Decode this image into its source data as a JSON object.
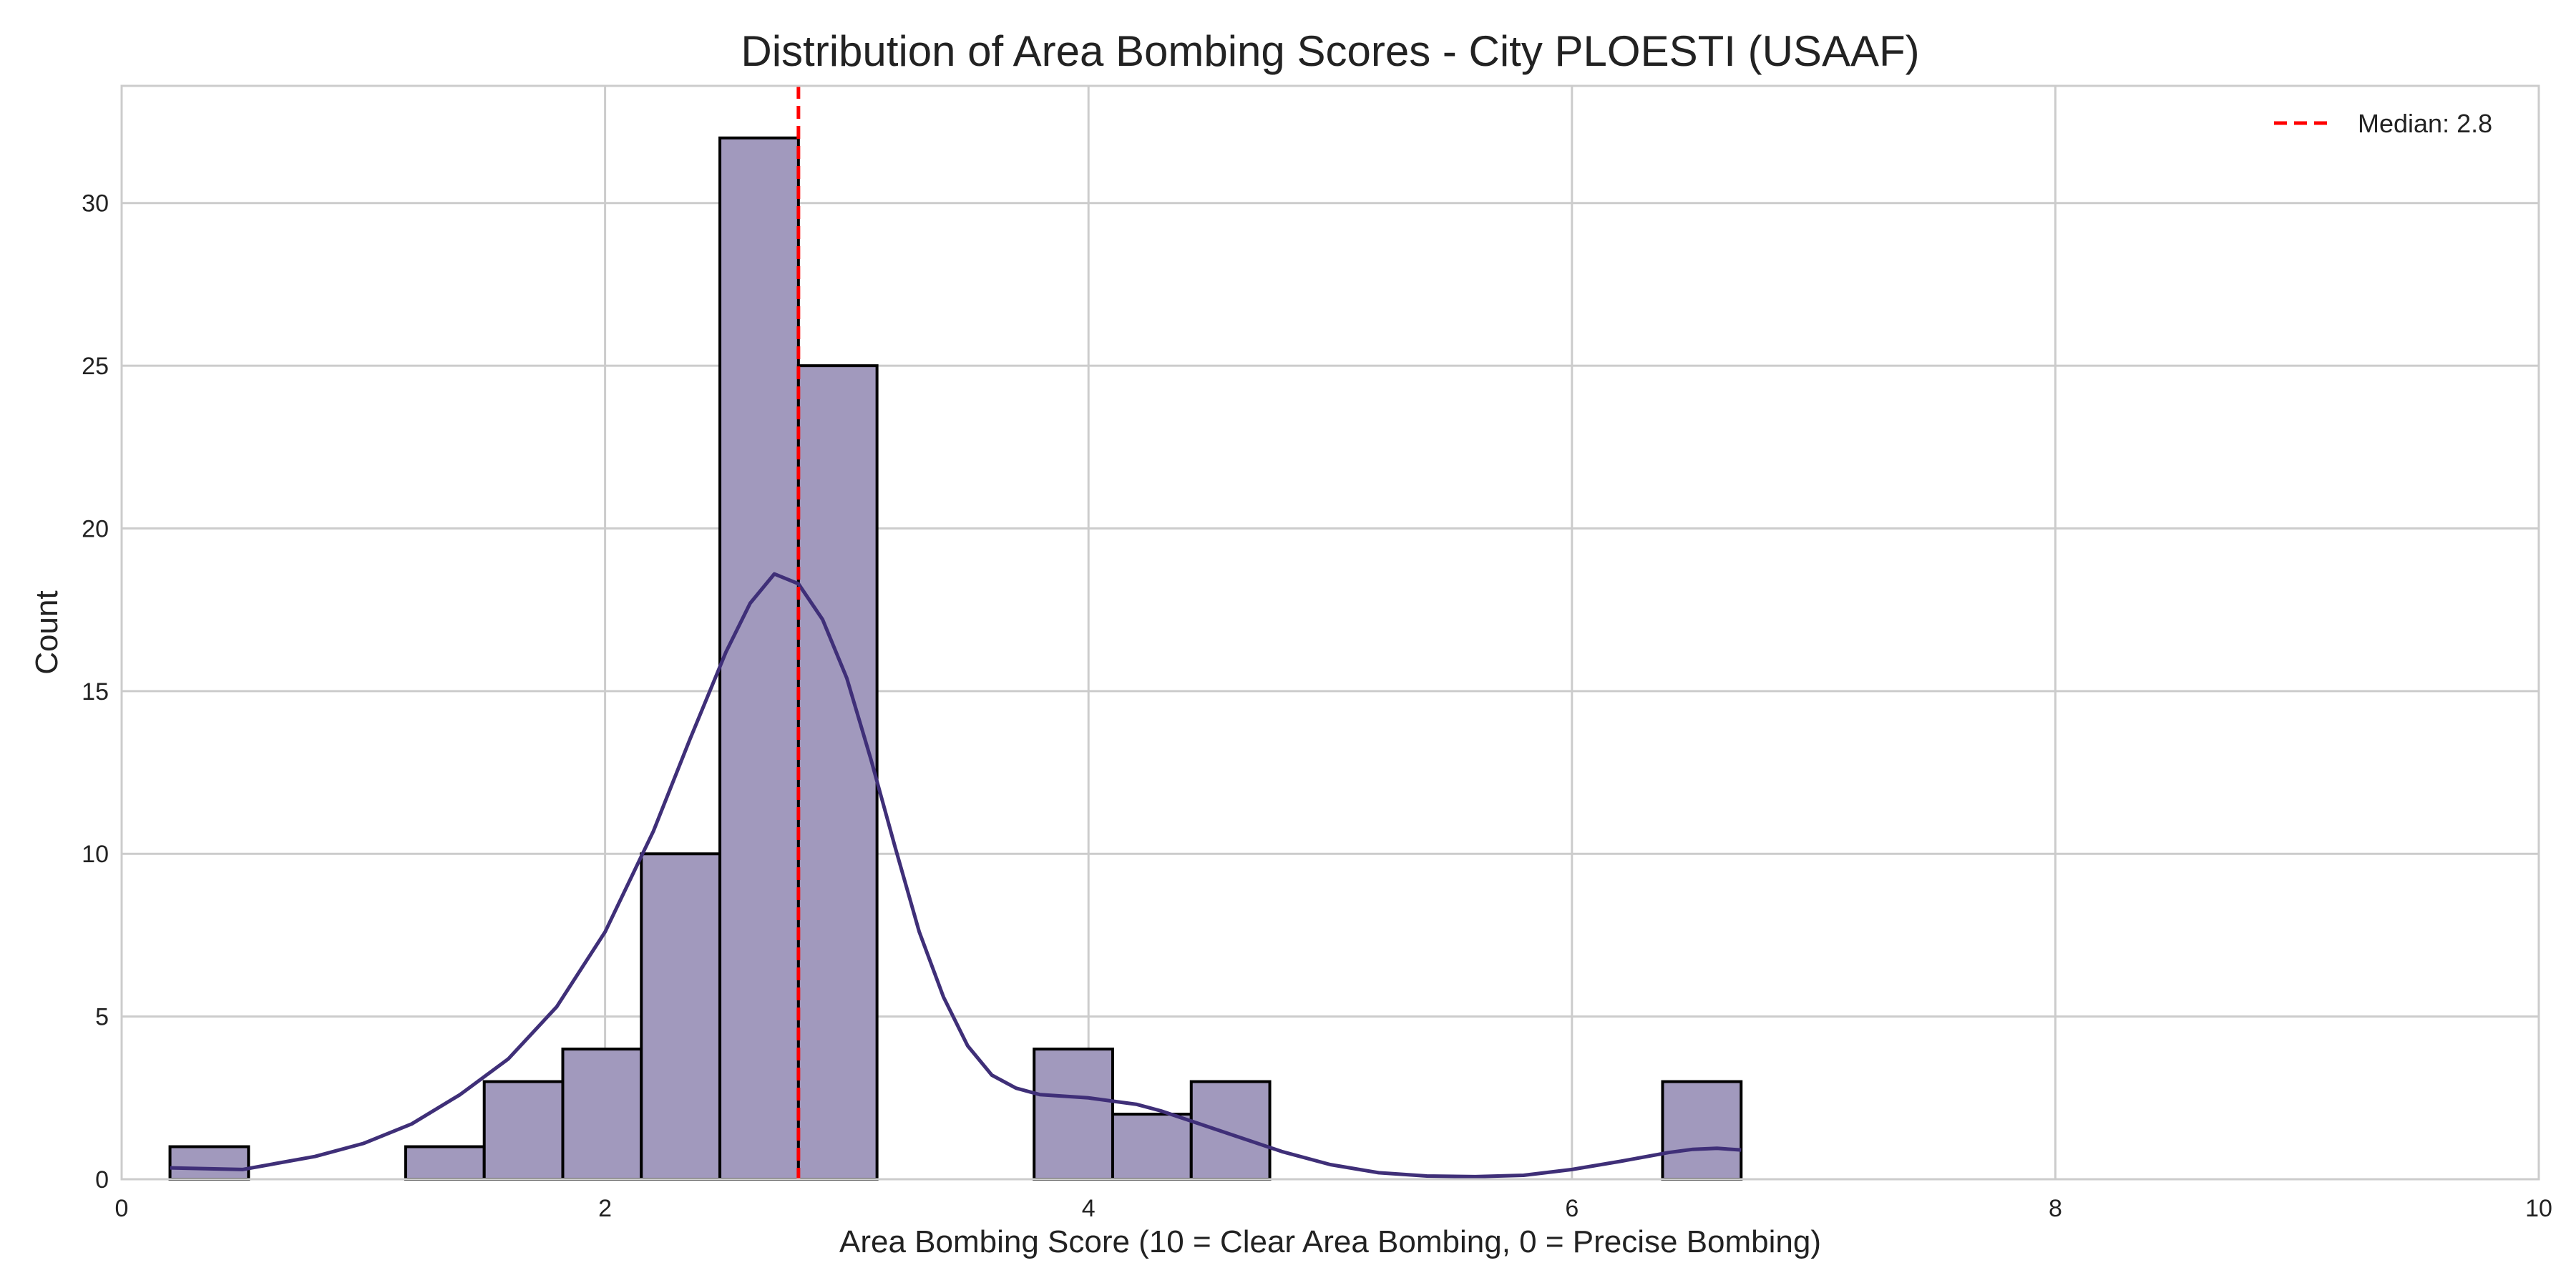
{
  "chart_data": {
    "type": "histogram",
    "title": "Distribution of Area Bombing Scores - City PLOESTI (USAAF)",
    "xlabel": "Area Bombing Score (10 = Clear Area Bombing, 0 = Precise Bombing)",
    "ylabel": "Count",
    "xlim": [
      0,
      10
    ],
    "ylim": [
      0,
      33.6
    ],
    "x_ticks": [
      0,
      2,
      4,
      6,
      8,
      10
    ],
    "x_tick_labels": [
      "0",
      "2",
      "4",
      "6",
      "8",
      "10"
    ],
    "y_ticks": [
      0,
      5,
      10,
      15,
      20,
      25,
      30
    ],
    "y_tick_labels": [
      "0",
      "5",
      "10",
      "15",
      "20",
      "25",
      "30"
    ],
    "grid": true,
    "legend_position": "top-right",
    "bins": [
      {
        "x0": 0.2,
        "x1": 0.525,
        "count": 1
      },
      {
        "x0": 1.175,
        "x1": 1.5,
        "count": 1
      },
      {
        "x0": 1.5,
        "x1": 1.825,
        "count": 3
      },
      {
        "x0": 1.825,
        "x1": 2.15,
        "count": 4
      },
      {
        "x0": 2.15,
        "x1": 2.475,
        "count": 10
      },
      {
        "x0": 2.475,
        "x1": 2.8,
        "count": 32
      },
      {
        "x0": 2.8,
        "x1": 3.125,
        "count": 25
      },
      {
        "x0": 3.775,
        "x1": 4.1,
        "count": 4
      },
      {
        "x0": 4.1,
        "x1": 4.425,
        "count": 2
      },
      {
        "x0": 4.425,
        "x1": 4.75,
        "count": 3
      },
      {
        "x0": 6.375,
        "x1": 6.7,
        "count": 3
      }
    ],
    "kde": {
      "x": [
        0.2,
        0.5,
        0.8,
        1.0,
        1.2,
        1.4,
        1.6,
        1.8,
        2.0,
        2.2,
        2.35,
        2.5,
        2.6,
        2.7,
        2.8,
        2.9,
        3.0,
        3.1,
        3.2,
        3.3,
        3.4,
        3.5,
        3.6,
        3.7,
        3.8,
        3.9,
        4.0,
        4.1,
        4.2,
        4.3,
        4.4,
        4.6,
        4.8,
        5.0,
        5.2,
        5.4,
        5.6,
        5.8,
        6.0,
        6.2,
        6.4,
        6.5,
        6.6,
        6.7
      ],
      "y": [
        0.35,
        0.3,
        0.7,
        1.1,
        1.7,
        2.6,
        3.7,
        5.3,
        7.6,
        10.7,
        13.5,
        16.2,
        17.7,
        18.6,
        18.3,
        17.2,
        15.4,
        12.9,
        10.2,
        7.6,
        5.6,
        4.1,
        3.2,
        2.8,
        2.6,
        2.55,
        2.5,
        2.4,
        2.3,
        2.1,
        1.85,
        1.35,
        0.85,
        0.45,
        0.2,
        0.1,
        0.08,
        0.12,
        0.3,
        0.55,
        0.82,
        0.92,
        0.95,
        0.9
      ],
      "color": "#3f2f78"
    },
    "median": {
      "value": 2.8,
      "label": "Median: 2.8",
      "color": "#ff0000"
    },
    "bar_fill": "#a199bd",
    "bar_stroke": "#000000"
  }
}
